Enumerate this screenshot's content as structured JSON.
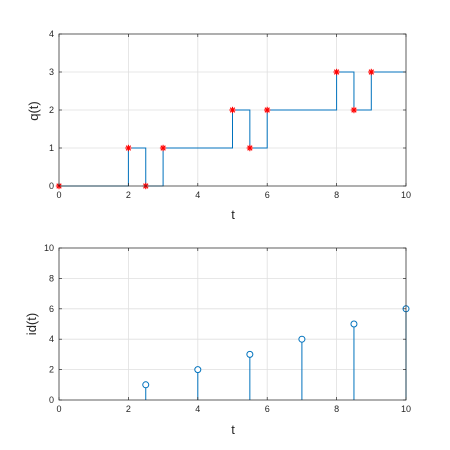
{
  "chart_data": [
    {
      "type": "line",
      "xlabel": "t",
      "ylabel": "q(t)",
      "xlim": [
        0,
        10
      ],
      "ylim": [
        0,
        4
      ],
      "xticks": [
        "0",
        "2",
        "4",
        "6",
        "8",
        "10"
      ],
      "yticks": [
        "0",
        "1",
        "2",
        "3",
        "4"
      ],
      "grid": true,
      "step_line_color": "#0072BD",
      "marker_color": "#FF0000",
      "step_series": {
        "x": [
          0,
          2,
          2.5,
          3,
          5,
          5.5,
          6,
          8,
          8.5,
          9,
          10
        ],
        "y": [
          0,
          1,
          0,
          1,
          2,
          1,
          2,
          3,
          2,
          3,
          3
        ]
      },
      "markers": {
        "marker": "asterisk",
        "x": [
          0,
          2,
          2.5,
          3,
          5,
          5.5,
          6,
          8,
          8.5,
          9
        ],
        "y": [
          0,
          1,
          0,
          1,
          2,
          1,
          2,
          3,
          2,
          3
        ]
      }
    },
    {
      "type": "stem",
      "xlabel": "t",
      "ylabel": "id(t)",
      "xlim": [
        0,
        10
      ],
      "ylim": [
        0,
        10
      ],
      "xticks": [
        "0",
        "2",
        "4",
        "6",
        "8",
        "10"
      ],
      "yticks": [
        "0",
        "2",
        "4",
        "6",
        "8",
        "10"
      ],
      "grid": true,
      "stem_color": "#0072BD",
      "marker": "circle",
      "x": [
        2.5,
        4,
        5.5,
        7,
        8.5,
        10
      ],
      "y": [
        1,
        2,
        3,
        4,
        5,
        6
      ]
    }
  ]
}
